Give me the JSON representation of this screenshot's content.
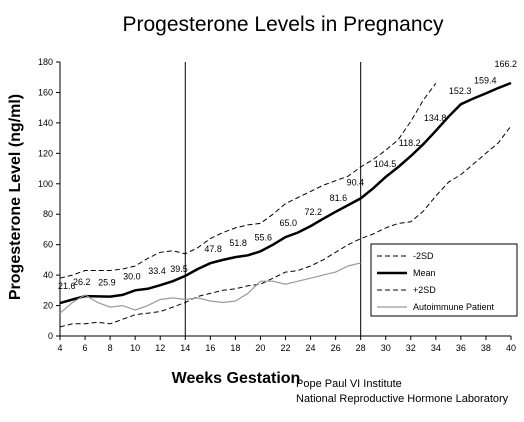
{
  "chart_data": {
    "type": "line",
    "title": "Progesterone Levels in Pregnancy",
    "xlabel": "Weeks Gestation",
    "ylabel": "Progesterone Level (ng/ml)",
    "xlim": [
      4,
      40
    ],
    "ylim": [
      0,
      180
    ],
    "x_ticks": [
      "4",
      "6",
      "8",
      "10",
      "12",
      "14",
      "16",
      "18",
      "20",
      "22",
      "24",
      "26",
      "28",
      "30",
      "32",
      "34",
      "36",
      "38",
      "40"
    ],
    "y_ticks": [
      "0",
      "20",
      "40",
      "60",
      "80",
      "100",
      "120",
      "140",
      "160",
      "180"
    ],
    "grid": false,
    "legend_placement": "bottom-right",
    "vertical_markers": [
      14,
      28
    ],
    "series": [
      {
        "name": "-2SD",
        "style": "dashed",
        "color": "#000000",
        "points": [
          [
            4,
            6
          ],
          [
            5,
            8
          ],
          [
            6,
            8
          ],
          [
            7,
            9
          ],
          [
            8,
            8
          ],
          [
            9,
            11
          ],
          [
            10,
            14
          ],
          [
            11,
            15
          ],
          [
            12,
            16
          ],
          [
            13,
            19
          ],
          [
            14,
            22
          ],
          [
            15,
            26
          ],
          [
            16,
            28
          ],
          [
            17,
            30
          ],
          [
            18,
            31
          ],
          [
            19,
            33
          ],
          [
            20,
            34
          ],
          [
            21,
            38
          ],
          [
            22,
            42
          ],
          [
            23,
            43
          ],
          [
            24,
            46
          ],
          [
            25,
            50
          ],
          [
            26,
            55
          ],
          [
            27,
            60
          ],
          [
            28,
            64
          ],
          [
            29,
            67
          ],
          [
            30,
            71
          ],
          [
            31,
            74
          ],
          [
            32,
            75
          ],
          [
            33,
            82
          ],
          [
            34,
            92
          ],
          [
            35,
            101
          ],
          [
            36,
            106
          ],
          [
            37,
            113
          ],
          [
            38,
            120
          ],
          [
            39,
            127
          ],
          [
            40,
            138
          ]
        ]
      },
      {
        "name": "Mean",
        "style": "solid-bold",
        "color": "#000000",
        "points": [
          [
            4,
            21.6
          ],
          [
            5,
            24
          ],
          [
            6,
            26.2
          ],
          [
            7,
            26
          ],
          [
            8,
            25.9
          ],
          [
            9,
            27
          ],
          [
            10,
            30
          ],
          [
            11,
            31
          ],
          [
            12,
            33.4
          ],
          [
            13,
            36
          ],
          [
            14,
            39.5
          ],
          [
            15,
            44
          ],
          [
            16,
            47.8
          ],
          [
            17,
            50
          ],
          [
            18,
            51.8
          ],
          [
            19,
            53
          ],
          [
            20,
            55.6
          ],
          [
            21,
            60
          ],
          [
            22,
            65
          ],
          [
            23,
            68
          ],
          [
            24,
            72.2
          ],
          [
            25,
            77
          ],
          [
            26,
            81.6
          ],
          [
            27,
            86
          ],
          [
            28,
            90.4
          ],
          [
            29,
            97
          ],
          [
            30,
            104.5
          ],
          [
            31,
            111
          ],
          [
            32,
            118.2
          ],
          [
            33,
            126
          ],
          [
            34,
            134.8
          ],
          [
            35,
            144
          ],
          [
            36,
            152.3
          ],
          [
            37,
            156
          ],
          [
            38,
            159.4
          ],
          [
            39,
            163
          ],
          [
            40,
            166.2
          ]
        ]
      },
      {
        "name": "+2SD",
        "style": "dashed",
        "color": "#000000",
        "points": [
          [
            4,
            38
          ],
          [
            5,
            40
          ],
          [
            6,
            43
          ],
          [
            7,
            43
          ],
          [
            8,
            43
          ],
          [
            9,
            44
          ],
          [
            10,
            46
          ],
          [
            11,
            51
          ],
          [
            12,
            55
          ],
          [
            13,
            56
          ],
          [
            14,
            54
          ],
          [
            15,
            58
          ],
          [
            16,
            64
          ],
          [
            17,
            68
          ],
          [
            18,
            71
          ],
          [
            19,
            73
          ],
          [
            20,
            74
          ],
          [
            21,
            80
          ],
          [
            22,
            87
          ],
          [
            23,
            91
          ],
          [
            24,
            95
          ],
          [
            25,
            99
          ],
          [
            26,
            102
          ],
          [
            27,
            105
          ],
          [
            28,
            111
          ],
          [
            29,
            116
          ],
          [
            30,
            122
          ],
          [
            31,
            129
          ],
          [
            32,
            141
          ],
          [
            33,
            155
          ],
          [
            34,
            166
          ]
        ]
      },
      {
        "name": "Autoimmune Patient",
        "style": "solid-thin",
        "color": "#9a9a9a",
        "points": [
          [
            4,
            15
          ],
          [
            5,
            22
          ],
          [
            6,
            27
          ],
          [
            7,
            22
          ],
          [
            8,
            19
          ],
          [
            9,
            20
          ],
          [
            10,
            17
          ],
          [
            11,
            20
          ],
          [
            12,
            24
          ],
          [
            13,
            25
          ],
          [
            14,
            24
          ],
          [
            15,
            25
          ],
          [
            16,
            23
          ],
          [
            17,
            22
          ],
          [
            18,
            23
          ],
          [
            19,
            28
          ],
          [
            20,
            36
          ],
          [
            21,
            36
          ],
          [
            22,
            34
          ],
          [
            23,
            36
          ],
          [
            24,
            38
          ],
          [
            25,
            40
          ],
          [
            26,
            42
          ],
          [
            27,
            46
          ],
          [
            28,
            48
          ]
        ]
      }
    ],
    "data_labels": [
      {
        "x": 4,
        "y": 21.6,
        "text": "21.6"
      },
      {
        "x": 6,
        "y": 26.2,
        "text": "26.2"
      },
      {
        "x": 8,
        "y": 25.9,
        "text": "25.9"
      },
      {
        "x": 10,
        "y": 30.0,
        "text": "30.0"
      },
      {
        "x": 12,
        "y": 33.4,
        "text": "33.4"
      },
      {
        "x": 14,
        "y": 39.5,
        "text": "39.5"
      },
      {
        "x": 16,
        "y": 47.8,
        "text": "47.8"
      },
      {
        "x": 18,
        "y": 51.8,
        "text": "51.8"
      },
      {
        "x": 20,
        "y": 55.6,
        "text": "55.6"
      },
      {
        "x": 22,
        "y": 65.0,
        "text": "65.0"
      },
      {
        "x": 24,
        "y": 72.2,
        "text": "72.2"
      },
      {
        "x": 26,
        "y": 81.6,
        "text": "81.6"
      },
      {
        "x": 28,
        "y": 90.4,
        "text": "90.4"
      },
      {
        "x": 30,
        "y": 104.5,
        "text": "104.5"
      },
      {
        "x": 32,
        "y": 118.2,
        "text": "118.2"
      },
      {
        "x": 34,
        "y": 134.8,
        "text": "134.8"
      },
      {
        "x": 36,
        "y": 152.3,
        "text": "152.3"
      },
      {
        "x": 38,
        "y": 159.4,
        "text": "159.4"
      },
      {
        "x": 40,
        "y": 166.2,
        "text": "166.2"
      }
    ]
  },
  "credits": {
    "line1": "Pope Paul VI Institute",
    "line2": "National Reproductive Hormone Laboratory"
  }
}
